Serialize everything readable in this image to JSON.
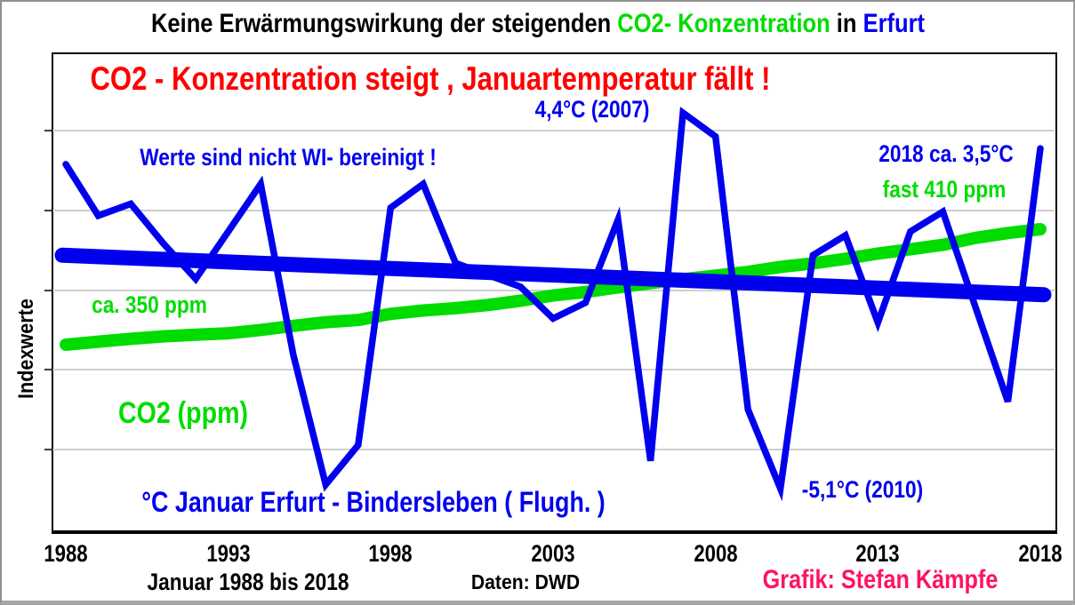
{
  "title": {
    "part1": "Keine Erwärmungswirkung der steigenden ",
    "part2": "CO2- Konzentration",
    "part3": " in ",
    "part4": "Erfurt",
    "part2_color": "#00dc00",
    "part4_color": "#0000ee"
  },
  "chart": {
    "headline": "CO2 - Konzentration steigt ,  Januartemperatur fällt !",
    "headline_color": "#ff0000",
    "y_axis_label": "Indexwerte",
    "x_ticks": [
      "1988",
      "1993",
      "1998",
      "2003",
      "2008",
      "2013",
      "2018"
    ],
    "annotations": {
      "peak_2007": "4,4°C (2007)",
      "note_wi": "Werte sind nicht WI- bereinigt !",
      "temp_2018": "2018 ca. 3,5°C",
      "co2_2018": "fast 410 ppm",
      "co2_1988": "ca. 350 ppm",
      "co2_series_label": "CO2 (ppm)",
      "temp_series_label": "°C Januar Erfurt - Bindersleben  ( Flugh. )",
      "low_2010": "-5,1°C (2010)"
    },
    "colors": {
      "temperature_line": "#0000ee",
      "co2_line": "#00dc00",
      "trend_line": "#0000ee",
      "gridline": "#bdbdbd",
      "headline": "#ff0000",
      "footer_credit": "#ff1166"
    }
  },
  "footer": {
    "caption_left": "Januar 1988 bis 2018",
    "caption_center": "Daten: DWD",
    "caption_right": "Grafik: Stefan Kämpfe"
  },
  "chart_data": {
    "type": "line",
    "title": "Keine Erwärmungswirkung der steigenden CO2-Konzentration in Erfurt",
    "ylabel": "Indexwerte",
    "x_range": [
      1988,
      2018
    ],
    "x_tick_years": [
      1988,
      1993,
      1998,
      2003,
      2008,
      2013,
      2018
    ],
    "grid": "horizontal",
    "legend_position": "none (labels drawn inside plot)",
    "x": [
      1988,
      1989,
      1990,
      1991,
      1992,
      1993,
      1994,
      1995,
      1996,
      1997,
      1998,
      1999,
      2000,
      2001,
      2002,
      2003,
      2004,
      2005,
      2006,
      2007,
      2008,
      2009,
      2010,
      2011,
      2012,
      2013,
      2014,
      2015,
      2016,
      2017,
      2018
    ],
    "series": [
      {
        "name": "Januartemperatur Erfurt-Bindersleben (°C)",
        "color": "#0000ee",
        "values": [
          3.1,
          1.8,
          2.1,
          1.1,
          0.2,
          1.4,
          2.6,
          -1.7,
          -5.0,
          -4.0,
          2.0,
          2.6,
          0.6,
          0.3,
          0.0,
          -0.8,
          -0.4,
          1.7,
          -4.4,
          4.4,
          3.8,
          -3.1,
          -5.1,
          0.8,
          1.3,
          -0.9,
          1.4,
          1.9,
          -0.5,
          -2.9,
          3.5
        ]
      },
      {
        "name": "CO2-Konzentration (ppm)",
        "color": "#00dc00",
        "values": [
          351.5,
          353.0,
          354.4,
          355.6,
          356.4,
          357.1,
          358.8,
          360.8,
          362.6,
          363.7,
          366.7,
          368.4,
          369.5,
          371.1,
          373.2,
          375.8,
          377.5,
          379.8,
          381.9,
          383.8,
          385.6,
          387.4,
          389.9,
          391.6,
          393.9,
          396.5,
          398.6,
          400.8,
          404.2,
          406.6,
          408.5
        ]
      },
      {
        "name": "Linearer Trend Januartemperatur (°C)",
        "color": "#0000ee",
        "trend_endpoints": [
          0.8,
          -0.2
        ]
      }
    ],
    "labeled_points": [
      {
        "year": 2007,
        "value_c": 4.4,
        "label": "4,4°C (2007)"
      },
      {
        "year": 2010,
        "value_c": -5.1,
        "label": "-5,1°C (2010)"
      },
      {
        "year": 2018,
        "value_c": 3.5,
        "label": "2018 ca. 3,5°C"
      },
      {
        "year": 1988,
        "co2_ppm": 350,
        "label": "ca. 350 ppm"
      },
      {
        "year": 2018,
        "co2_ppm": 410,
        "label": "fast 410 ppm"
      }
    ]
  }
}
